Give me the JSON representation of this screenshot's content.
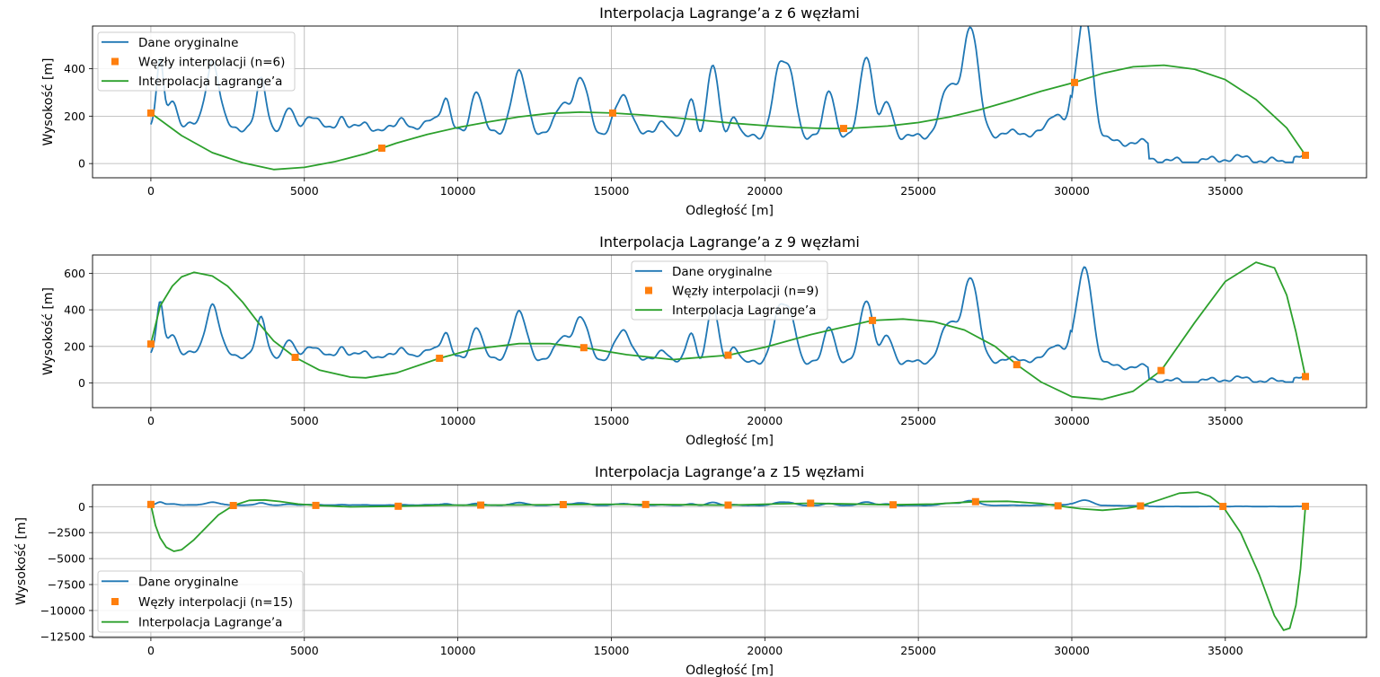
{
  "colors": {
    "original": "#1f77b4",
    "nodes": "#ff7f0e",
    "interp": "#2ca02c",
    "grid": "#b0b0b0",
    "legend_border": "#cccccc"
  },
  "chart_data": [
    {
      "type": "line",
      "title": "Interpolacja Lagrange’a z 6 węzłami",
      "xlabel": "Odległość [m]",
      "ylabel": "Wysokość [m]",
      "xlim": [
        -1900,
        39600
      ],
      "ylim": [
        -60,
        580
      ],
      "xticks": [
        0,
        5000,
        10000,
        15000,
        20000,
        25000,
        30000,
        35000
      ],
      "yticks": [
        0,
        200,
        400
      ],
      "grid": true,
      "legend_position": "top-left",
      "series": [
        {
          "name": "Dane oryginalne",
          "kind": "line"
        },
        {
          "name": "Węzły interpolacji (n=6)",
          "kind": "markers",
          "x": [
            0,
            7522,
            15044,
            22566,
            30088,
            37610
          ],
          "y": [
            213,
            65,
            213,
            148,
            342,
            35
          ]
        },
        {
          "name": "Interpolacja Lagrange’a",
          "kind": "line",
          "x": [
            0,
            1000,
            2000,
            3000,
            4000,
            5000,
            6000,
            7000,
            7522,
            8000,
            9000,
            10000,
            11000,
            12000,
            13000,
            14000,
            15044,
            16000,
            17000,
            18000,
            19000,
            20000,
            21000,
            22000,
            22566,
            23000,
            24000,
            25000,
            26000,
            27000,
            28000,
            29000,
            30088,
            31000,
            32000,
            33000,
            34000,
            35000,
            36000,
            37000,
            37610
          ],
          "y": [
            213,
            118,
            46,
            3,
            -25,
            -16,
            8,
            42,
            65,
            86,
            123,
            152,
            176,
            197,
            212,
            217,
            213,
            205,
            194,
            182,
            170,
            160,
            152,
            148,
            148,
            150,
            158,
            173,
            196,
            227,
            264,
            305,
            342,
            380,
            408,
            415,
            398,
            354,
            270,
            150,
            35
          ]
        }
      ]
    },
    {
      "type": "line",
      "title": "Interpolacja Lagrange’a z 9 węzłami",
      "xlabel": "Odległość [m]",
      "ylabel": "Wysokość [m]",
      "xlim": [
        -1900,
        39600
      ],
      "ylim": [
        -135,
        700
      ],
      "xticks": [
        0,
        5000,
        10000,
        15000,
        20000,
        25000,
        30000,
        35000
      ],
      "yticks": [
        0,
        200,
        400,
        600
      ],
      "grid": true,
      "legend_position": "top-center",
      "series": [
        {
          "name": "Dane oryginalne",
          "kind": "line"
        },
        {
          "name": "Węzły interpolacji (n=9)",
          "kind": "markers",
          "x": [
            0,
            4701,
            9403,
            14104,
            18805,
            23506,
            28208,
            32909,
            37610
          ],
          "y": [
            213,
            140,
            135,
            193,
            152,
            342,
            100,
            68,
            35
          ]
        },
        {
          "name": "Interpolacja Lagrange’a",
          "kind": "line",
          "x": [
            0,
            300,
            700,
            1000,
            1400,
            2000,
            2500,
            3000,
            3500,
            4000,
            4701,
            5500,
            6500,
            7000,
            8000,
            9403,
            10500,
            12000,
            13000,
            14104,
            15500,
            17000,
            18805,
            20000,
            21500,
            23506,
            24500,
            25500,
            26500,
            27500,
            28208,
            29000,
            30000,
            31000,
            32000,
            32909,
            34000,
            35000,
            36000,
            36600,
            37000,
            37300,
            37610
          ],
          "y": [
            213,
            420,
            530,
            580,
            605,
            585,
            530,
            440,
            330,
            230,
            140,
            70,
            32,
            28,
            55,
            135,
            185,
            215,
            215,
            193,
            155,
            128,
            152,
            195,
            265,
            342,
            350,
            335,
            290,
            200,
            100,
            5,
            -75,
            -90,
            -45,
            68,
            330,
            555,
            660,
            630,
            480,
            280,
            35
          ]
        }
      ]
    },
    {
      "type": "line",
      "title": "Interpolacja Lagrange’a z 15 węzłami",
      "xlabel": "Odległość [m]",
      "ylabel": "Wysokość [m]",
      "xlim": [
        -1900,
        39600
      ],
      "ylim": [
        -12600,
        2100
      ],
      "xticks": [
        0,
        5000,
        10000,
        15000,
        20000,
        25000,
        30000,
        35000
      ],
      "yticks": [
        0,
        -2500,
        -5000,
        -7500,
        -10000,
        -12500
      ],
      "grid": true,
      "legend_position": "bottom-left",
      "series": [
        {
          "name": "Dane oryginalne",
          "kind": "line"
        },
        {
          "name": "Węzły interpolacji (n=15)",
          "kind": "markers",
          "x": [
            0,
            2686,
            5373,
            8059,
            10746,
            13432,
            16118,
            18805,
            21491,
            24178,
            26864,
            29551,
            32237,
            34924,
            37610
          ],
          "y": [
            213,
            110,
            120,
            40,
            150,
            200,
            210,
            150,
            330,
            180,
            480,
            80,
            70,
            20,
            35
          ]
        },
        {
          "name": "Interpolacja Lagrange’a",
          "kind": "line",
          "x": [
            0,
            150,
            300,
            500,
            750,
            1000,
            1400,
            1800,
            2200,
            2686,
            3200,
            3700,
            4200,
            4800,
            5373,
            6500,
            8059,
            9500,
            10746,
            12000,
            13432,
            14800,
            16118,
            17500,
            18805,
            20200,
            21491,
            22800,
            24178,
            25500,
            26864,
            27900,
            29000,
            29551,
            30300,
            31000,
            31800,
            32237,
            32900,
            33500,
            34100,
            34500,
            34924,
            35500,
            36100,
            36600,
            36900,
            37100,
            37300,
            37450,
            37610
          ],
          "y": [
            213,
            -1800,
            -3000,
            -3900,
            -4300,
            -4150,
            -3200,
            -2000,
            -800,
            110,
            600,
            650,
            500,
            250,
            120,
            -20,
            40,
            140,
            150,
            160,
            200,
            230,
            210,
            180,
            150,
            250,
            330,
            260,
            180,
            250,
            480,
            520,
            300,
            80,
            -200,
            -350,
            -150,
            70,
            700,
            1300,
            1400,
            1000,
            20,
            -2500,
            -6500,
            -10500,
            -11900,
            -11700,
            -9500,
            -6000,
            35
          ]
        }
      ]
    }
  ]
}
